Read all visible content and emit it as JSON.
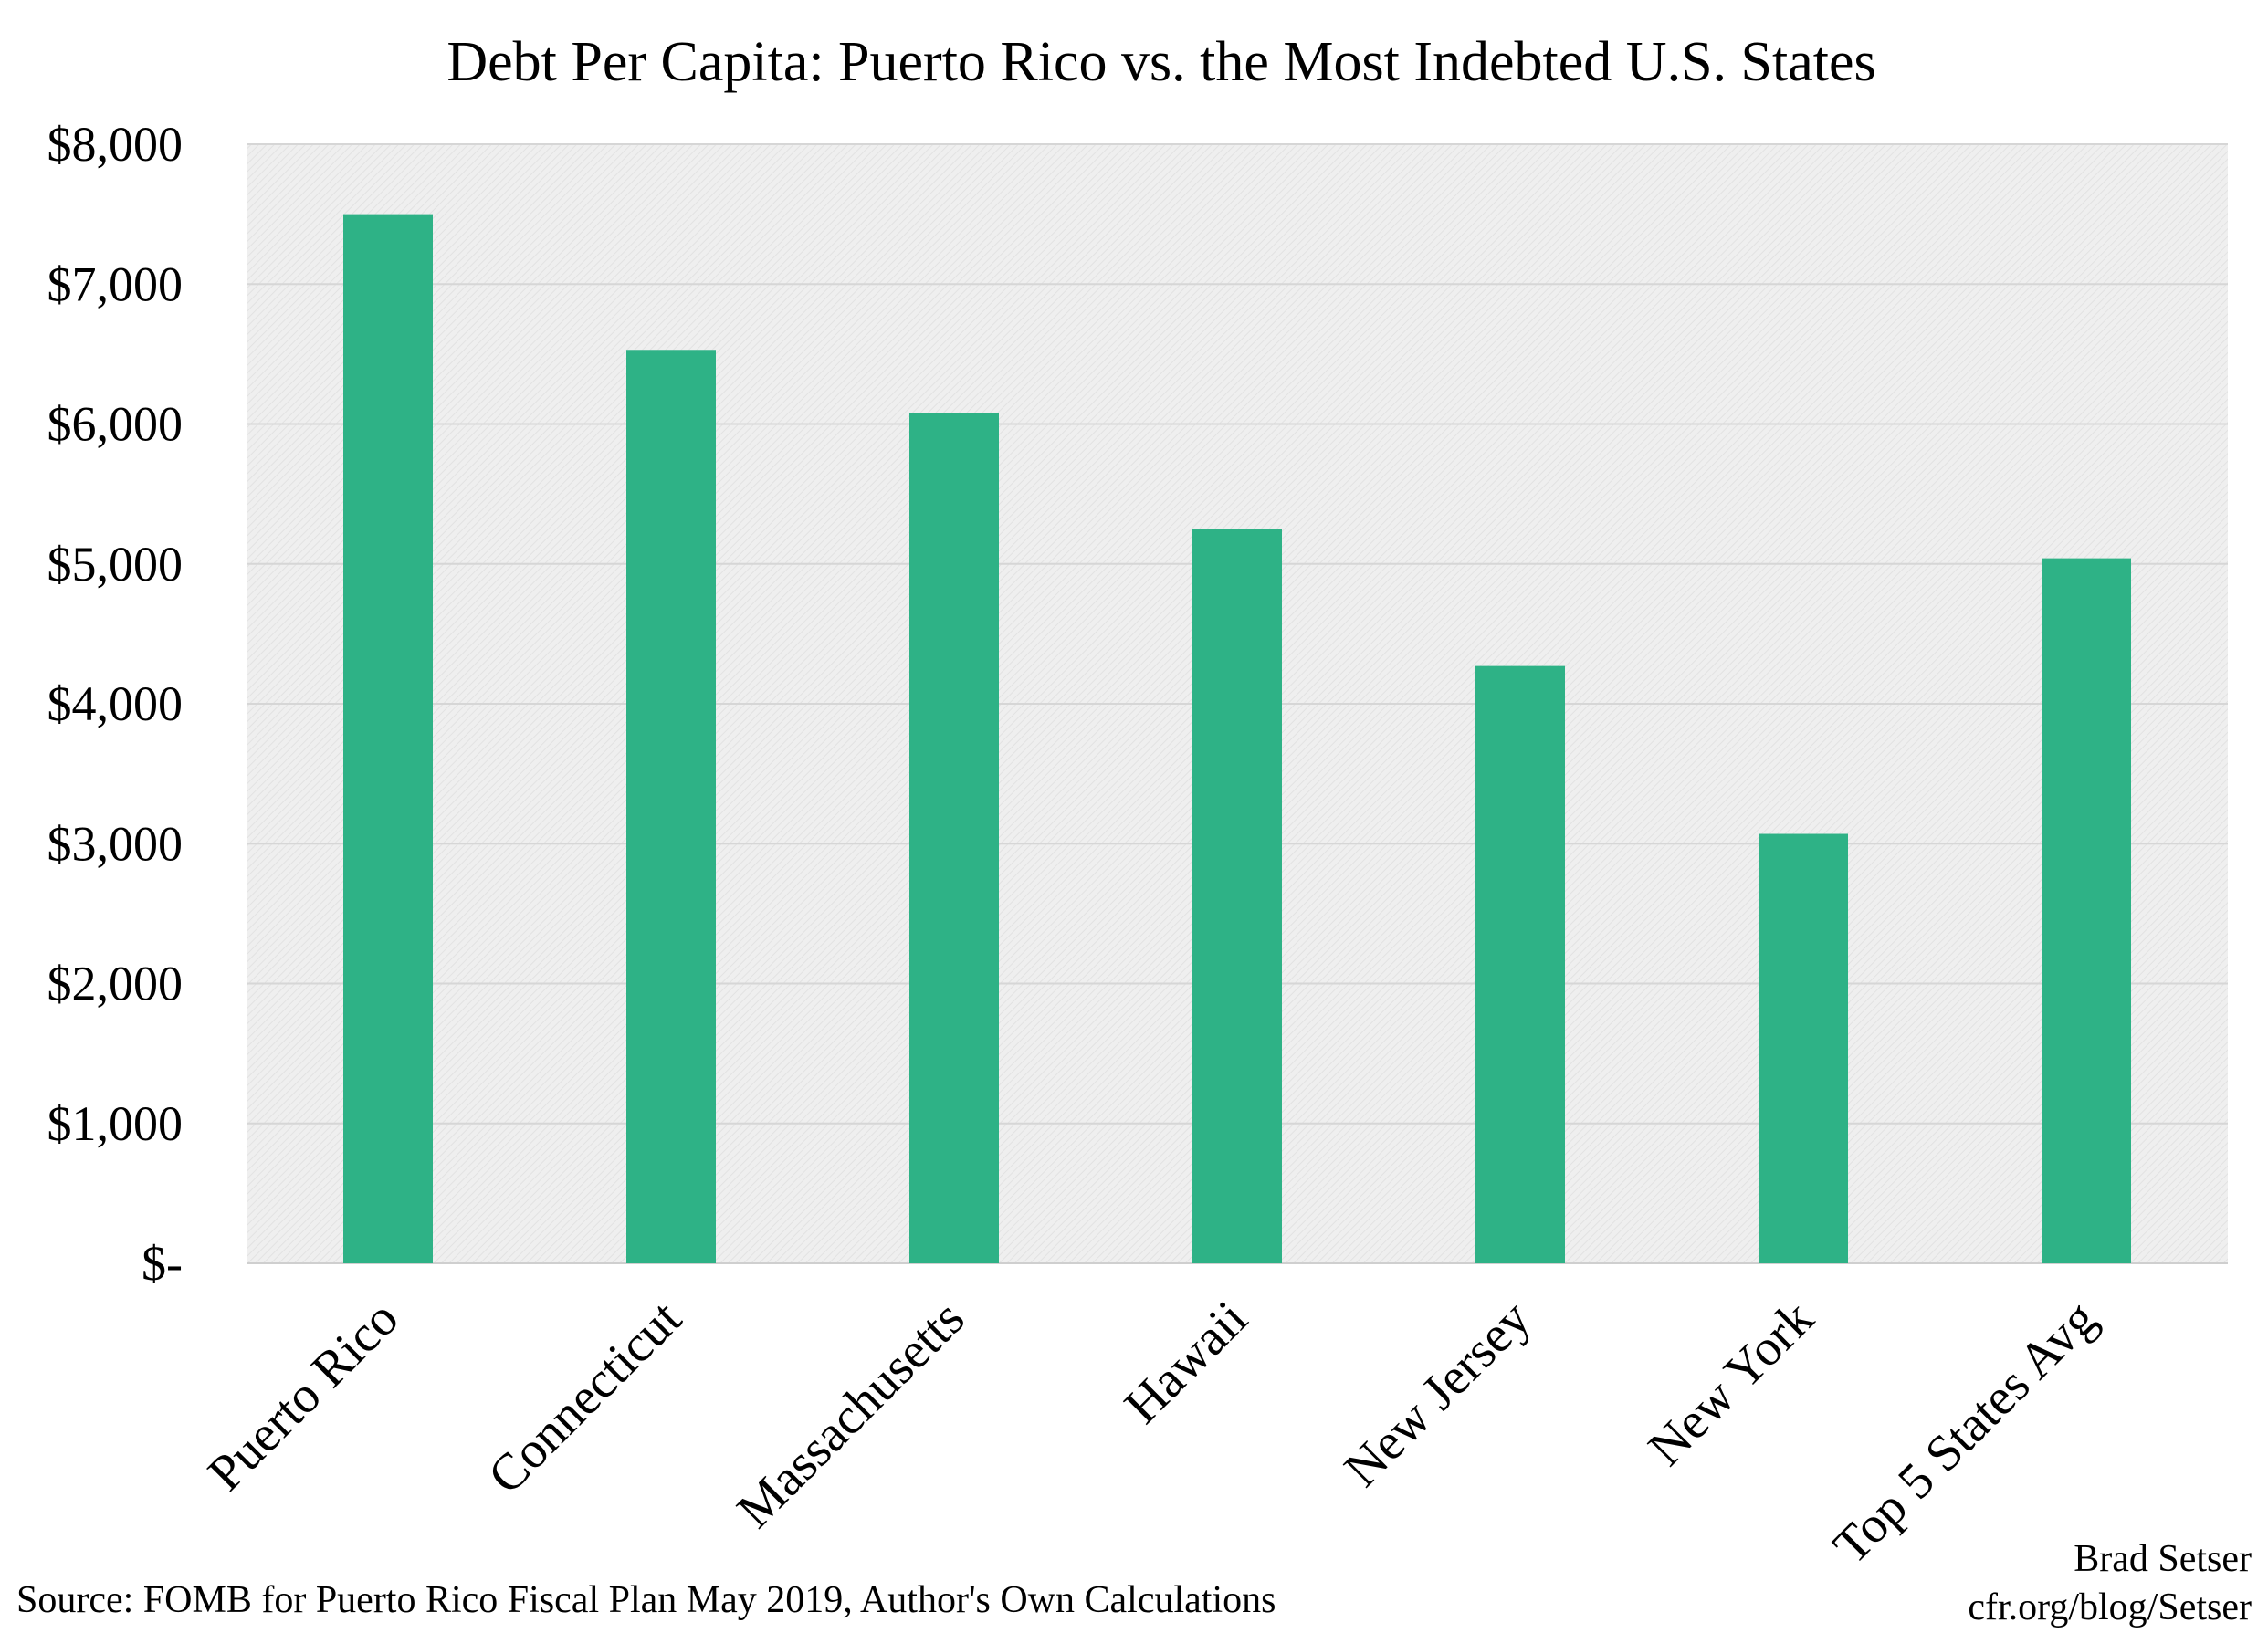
{
  "chart_data": {
    "type": "bar",
    "title": "Debt Per Capita: Puerto Rico vs. the Most Indebted U.S. States",
    "categories": [
      "Puerto Rico",
      "Connecticut",
      "Massachusetts",
      "Hawaii",
      "New Jersey",
      "New York",
      "Top 5 States Avg"
    ],
    "values": [
      7500,
      6530,
      6080,
      5250,
      4270,
      3070,
      5040
    ],
    "ylim": [
      0,
      8000
    ],
    "yticks": [
      0,
      1000,
      2000,
      3000,
      4000,
      5000,
      6000,
      7000,
      8000
    ],
    "ytick_labels": [
      "$-",
      "$1,000",
      "$2,000",
      "$3,000",
      "$4,000",
      "$5,000",
      "$6,000",
      "$7,000",
      "$8,000"
    ],
    "xlabel": "",
    "ylabel": "",
    "grid": true,
    "legend": "none",
    "colors": {
      "bar": "#2eb286",
      "plot_background": "#ececec",
      "gridline": "#d6d6d6",
      "text": "#000000"
    }
  },
  "footer": {
    "source": "Source: FOMB for Puerto Rico Fiscal Plan May 2019, Author's Own Calculations",
    "author": "Brad Setser",
    "site": "cfr.org/blog/Setser"
  }
}
